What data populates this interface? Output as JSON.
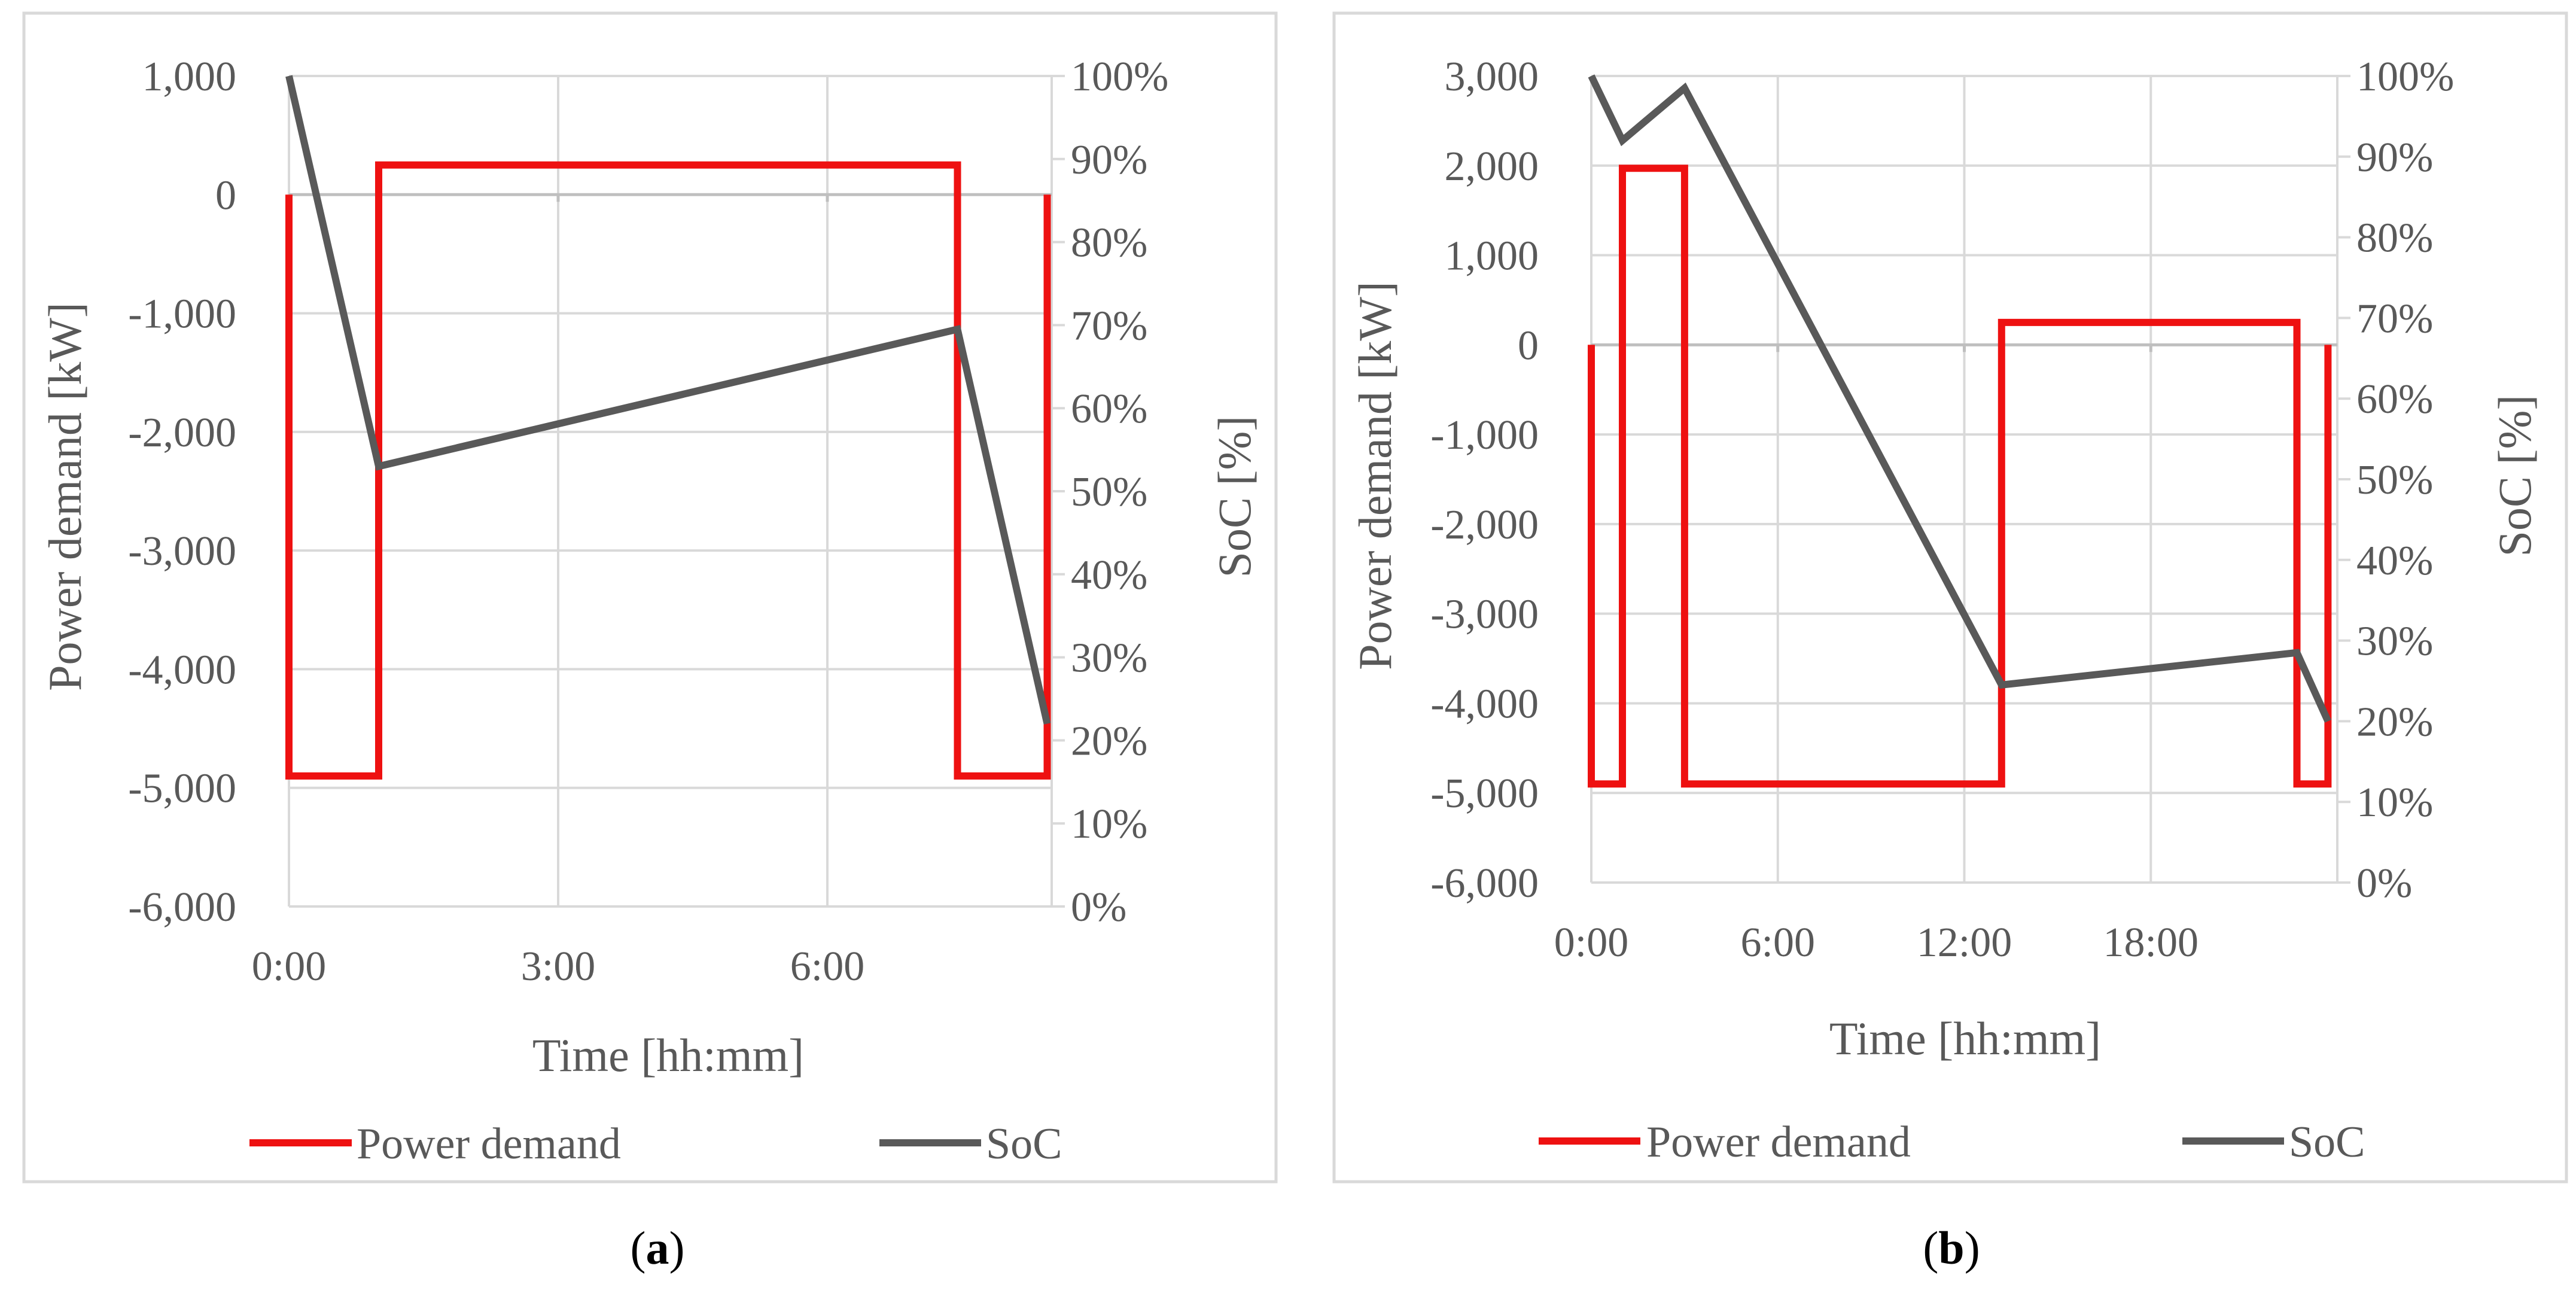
{
  "colors": {
    "power": "#ee1111",
    "soc": "#595959",
    "grid": "#d9d9d9",
    "frame": "#d9d9d9",
    "text": "#595959"
  },
  "chart_data": [
    {
      "type": "line",
      "panel": "a",
      "caption_letter": "a",
      "caption": "(a)",
      "xlabel": "Time [hh:mm]",
      "ylabel": "Power demand [kW]",
      "y2label": "SoC [%]",
      "xlim": [
        0,
        8.5
      ],
      "ylim": [
        -6000,
        1000
      ],
      "y2lim": [
        0,
        100
      ],
      "x_ticks": [
        0,
        3,
        6
      ],
      "x_tick_labels": [
        "0:00",
        "3:00",
        "6:00"
      ],
      "y_ticks": [
        1000,
        0,
        -1000,
        -2000,
        -3000,
        -4000,
        -5000,
        -6000
      ],
      "y_tick_labels": [
        "1,000",
        "0",
        "-1,000",
        "-2,000",
        "-3,000",
        "-4,000",
        "-5,000",
        "-6,000"
      ],
      "y2_ticks": [
        100,
        90,
        80,
        70,
        60,
        50,
        40,
        30,
        20,
        10,
        0
      ],
      "y2_tick_labels": [
        "100%",
        "90%",
        "80%",
        "70%",
        "60%",
        "50%",
        "40%",
        "30%",
        "20%",
        "10%",
        "0%"
      ],
      "grid": true,
      "legend_position": "bottom",
      "series": [
        {
          "name": "Power demand",
          "axis": "left",
          "color": "#ee1111",
          "x": [
            0,
            0,
            1,
            1,
            7.45,
            7.45,
            8.45,
            8.45
          ],
          "y": [
            0,
            -4900,
            -4900,
            250,
            250,
            -4900,
            -4900,
            0
          ]
        },
        {
          "name": "SoC",
          "axis": "right",
          "color": "#595959",
          "x": [
            0,
            1,
            7.45,
            8.45
          ],
          "y": [
            100,
            53,
            69.5,
            22
          ]
        }
      ]
    },
    {
      "type": "line",
      "panel": "b",
      "caption_letter": "b",
      "caption": "(b)",
      "xlabel": "Time [hh:mm]",
      "ylabel": "Power demand [kW]",
      "y2label": "SoC [%]",
      "xlim": [
        0,
        24
      ],
      "ylim": [
        -6000,
        3000
      ],
      "y2lim": [
        0,
        100
      ],
      "x_ticks": [
        0,
        6,
        12,
        18
      ],
      "x_tick_labels": [
        "0:00",
        "6:00",
        "12:00",
        "18:00"
      ],
      "y_ticks": [
        3000,
        2000,
        1000,
        0,
        -1000,
        -2000,
        -3000,
        -4000,
        -5000,
        -6000
      ],
      "y_tick_labels": [
        "3,000",
        "2,000",
        "1,000",
        "0",
        "-1,000",
        "-2,000",
        "-3,000",
        "-4,000",
        "-5,000",
        "-6,000"
      ],
      "y2_ticks": [
        100,
        90,
        80,
        70,
        60,
        50,
        40,
        30,
        20,
        10,
        0
      ],
      "y2_tick_labels": [
        "100%",
        "90%",
        "80%",
        "70%",
        "60%",
        "50%",
        "40%",
        "30%",
        "20%",
        "10%",
        "0%"
      ],
      "grid": true,
      "legend_position": "bottom",
      "series": [
        {
          "name": "Power demand",
          "axis": "left",
          "color": "#ee1111",
          "x": [
            0,
            0,
            1,
            1,
            3,
            3,
            13.2,
            13.2,
            22.7,
            22.7,
            23.7,
            23.7
          ],
          "y": [
            0,
            -4900,
            -4900,
            1970,
            1970,
            -4900,
            -4900,
            250,
            250,
            -4900,
            -4900,
            0
          ]
        },
        {
          "name": "SoC",
          "axis": "right",
          "color": "#595959",
          "x": [
            0,
            1,
            3,
            13.2,
            22.7,
            23.7
          ],
          "y": [
            100,
            92,
            98.5,
            24.5,
            28.5,
            20
          ]
        }
      ]
    }
  ]
}
